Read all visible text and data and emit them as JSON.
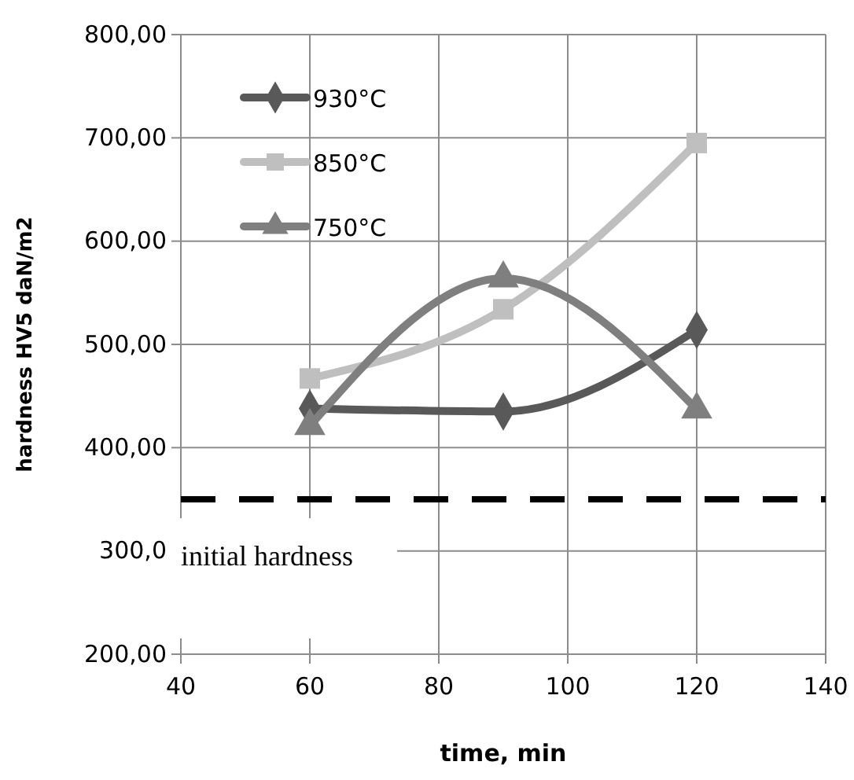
{
  "chart_data": {
    "type": "line",
    "xlabel": "time, min",
    "ylabel": "hardness HV5 daN/m2",
    "x": [
      60,
      90,
      120
    ],
    "series": [
      {
        "name": "930°C",
        "color": "#595959",
        "marker": "diamond",
        "values": [
          438,
          435,
          514
        ]
      },
      {
        "name": "850°C",
        "color": "#bfbfbf",
        "marker": "square",
        "values": [
          467,
          534,
          695
        ]
      },
      {
        "name": "750°C",
        "color": "#7f7f7f",
        "marker": "triangle",
        "values": [
          421,
          564,
          437
        ]
      }
    ],
    "xlim": [
      40,
      140
    ],
    "xticks": [
      40,
      60,
      80,
      100,
      120,
      140
    ],
    "ylim": [
      200,
      800
    ],
    "yticks": [
      {
        "value": 200,
        "label": "200,00"
      },
      {
        "value": 300,
        "label": "300,0"
      },
      {
        "value": 400,
        "label": "400,00"
      },
      {
        "value": 500,
        "label": "500,00"
      },
      {
        "value": 600,
        "label": "600,00"
      },
      {
        "value": 700,
        "label": "700,00"
      },
      {
        "value": 800,
        "label": "800,00"
      }
    ],
    "grid": true,
    "legend": "top left",
    "line_style": "solid",
    "ref_lines": [
      {
        "axis": "y",
        "value": 350,
        "label": "initial hardness",
        "color": "#000000",
        "line_style": "dashed"
      }
    ]
  }
}
